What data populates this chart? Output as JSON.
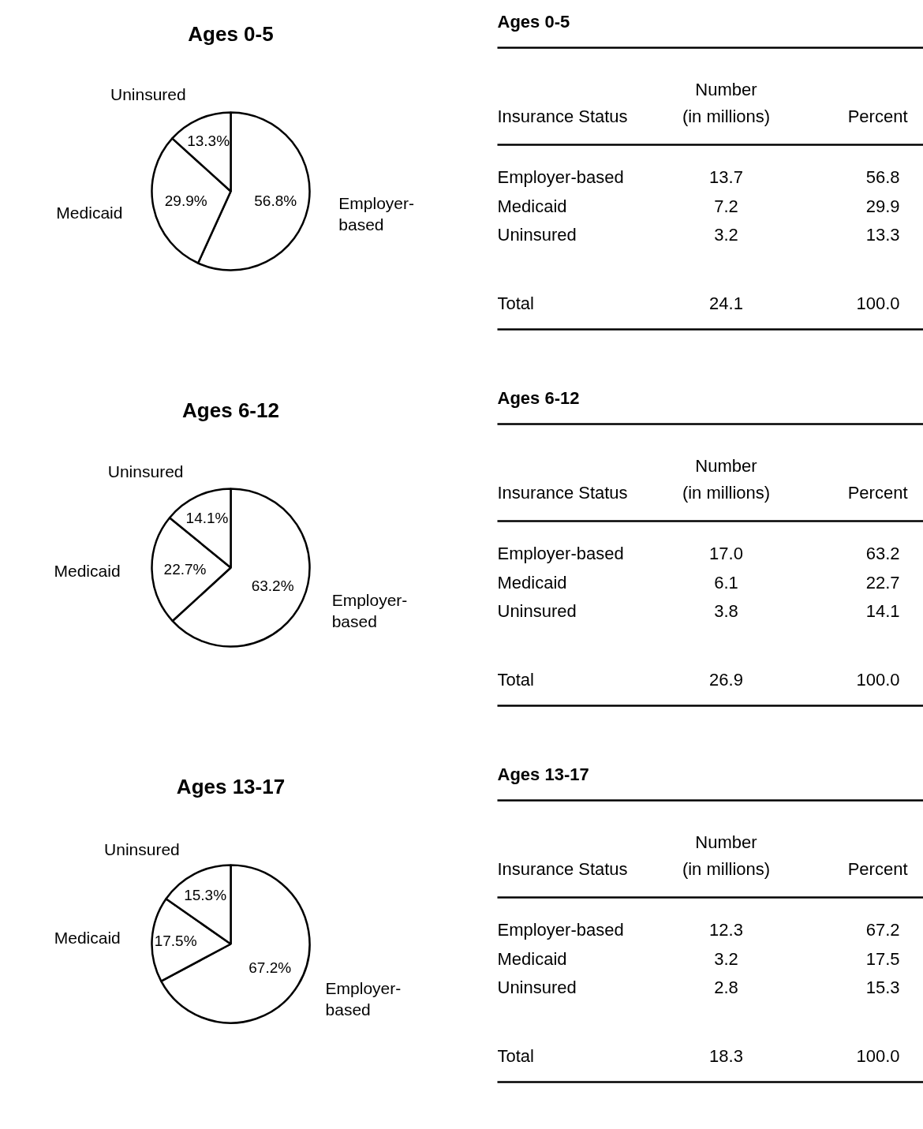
{
  "chart_data": [
    {
      "type": "pie",
      "title": "Ages 0-5",
      "categories": [
        "Employer-\nbased",
        "Medicaid",
        "Uninsured"
      ],
      "values": [
        56.8,
        29.9,
        13.3
      ],
      "value_labels": [
        "56.8%",
        "29.9%",
        "13.3%"
      ],
      "colors": [
        "#ffffff",
        "#ffffff",
        "#ffffff"
      ],
      "legend": false
    },
    {
      "type": "other",
      "title": "Ages 0-5",
      "annotations": [
        "Insurance Status",
        "Number\n(in millions)",
        "Percent",
        "Employer-based",
        "13.7",
        "56.8",
        "Medicaid",
        "7.2",
        "29.9",
        "Uninsured",
        "3.2",
        "13.3",
        "Total",
        "24.1",
        "100.0"
      ]
    },
    {
      "type": "pie",
      "title": "Ages 6-12",
      "categories": [
        "Employer-\nbased",
        "Medicaid",
        "Uninsured"
      ],
      "values": [
        63.2,
        22.7,
        14.1
      ],
      "value_labels": [
        "63.2%",
        "22.7%",
        "14.1%"
      ],
      "colors": [
        "#ffffff",
        "#ffffff",
        "#ffffff"
      ],
      "legend": false
    },
    {
      "type": "other",
      "title": "Ages 6-12",
      "annotations": [
        "Insurance Status",
        "Number\n(in millions)",
        "Percent",
        "Employer-based",
        "17.0",
        "63.2",
        "Medicaid",
        "6.1",
        "22.7",
        "Uninsured",
        "3.8",
        "14.1",
        "Total",
        "26.9",
        "100.0"
      ]
    },
    {
      "type": "pie",
      "title": "Ages 13-17",
      "categories": [
        "Employer-\nbased",
        "Medicaid",
        "Uninsured"
      ],
      "values": [
        67.2,
        17.5,
        15.3
      ],
      "value_labels": [
        "67.2%",
        "17.5%",
        "15.3%"
      ],
      "colors": [
        "#ffffff",
        "#ffffff",
        "#ffffff"
      ],
      "legend": false
    },
    {
      "type": "other",
      "title": "Ages 13-17",
      "annotations": [
        "Insurance Status",
        "Number\n(in millions)",
        "Percent",
        "Employer-based",
        "12.3",
        "67.2",
        "Medicaid",
        "3.2",
        "17.5",
        "Uninsured",
        "2.8",
        "15.3",
        "Total",
        "18.3",
        "100.0"
      ]
    }
  ]
}
